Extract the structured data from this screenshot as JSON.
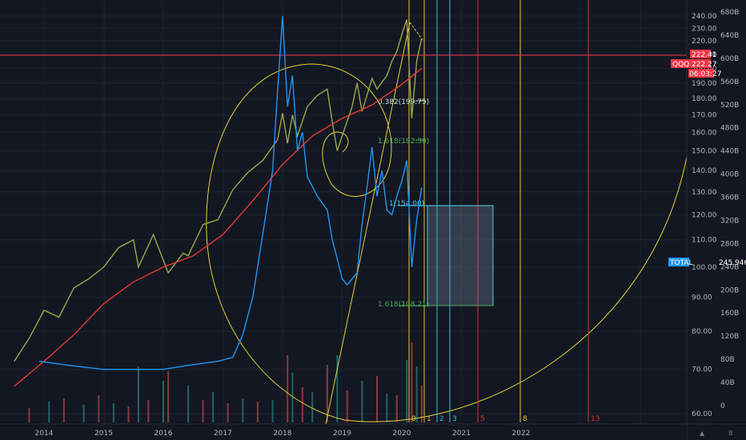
{
  "chart_data": {
    "type": "line",
    "symbol": "QQQ",
    "x_labels": [
      "2014",
      "2015",
      "2016",
      "2017",
      "2018",
      "2019",
      "2020",
      "2021",
      "2022"
    ],
    "price_axis": {
      "ticks": [
        "240.00",
        "230.00",
        "220.00",
        "210.00",
        "200.00",
        "190.00",
        "180.00",
        "170.00",
        "160.00",
        "150.00",
        "140.00",
        "130.00",
        "120.00",
        "110.00",
        "100.00",
        "90.00",
        "80.00",
        "70.00",
        "60.00"
      ],
      "scale": "log",
      "ylim": [
        60,
        240
      ]
    },
    "volume_axis": {
      "ticks": [
        "680B",
        "640B",
        "600B",
        "560B",
        "520B",
        "480B",
        "440B",
        "400B",
        "360B",
        "320B",
        "280B",
        "240B",
        "200B",
        "160B",
        "120B",
        "80B",
        "40B",
        "0"
      ]
    },
    "price_tags": [
      {
        "label": "",
        "value": "222.41",
        "color": "#f23645"
      },
      {
        "label": "QQQ",
        "value": "222.27",
        "color": "#f23645"
      },
      {
        "label": "",
        "value": "06:03:27",
        "color": "#f23645"
      },
      {
        "label": "TOTAL",
        "value": "245.946",
        "color": "#2196f3"
      }
    ],
    "fib_levels": [
      {
        "label": "0.382(199.75)",
        "color": "#c8e6c9"
      },
      {
        "label": "1.618(182.30)",
        "color": "#4caf50"
      },
      {
        "label": "1(154.00)",
        "color": "#4dd0e1"
      },
      {
        "label": "1.618(108.21)",
        "color": "#4caf50"
      }
    ],
    "time_zones": [
      {
        "label": "0",
        "color": "#e5c33a"
      },
      {
        "label": "1",
        "color": "#e5c33a"
      },
      {
        "label": "2",
        "color": "#26c6da"
      },
      {
        "label": "3",
        "color": "#26c6da"
      },
      {
        "label": "5",
        "color": "#d32f2f"
      },
      {
        "label": "8",
        "color": "#e5c33a"
      },
      {
        "label": "13",
        "color": "#d32f2f"
      }
    ],
    "series": [
      {
        "color": "#9aa84a",
        "points": [
          [
            "2013-07",
            72
          ],
          [
            "2013-10",
            78
          ],
          [
            "2014-01",
            86
          ],
          [
            "2014-04",
            84
          ],
          [
            "2014-07",
            93
          ],
          [
            "2014-10",
            96
          ],
          [
            "2015-01",
            100
          ],
          [
            "2015-04",
            107
          ],
          [
            "2015-07",
            110
          ],
          [
            "2015-08",
            100
          ],
          [
            "2015-11",
            112
          ],
          [
            "2016-02",
            98
          ],
          [
            "2016-05",
            105
          ],
          [
            "2016-06",
            104
          ],
          [
            "2016-09",
            116
          ],
          [
            "2016-12",
            118
          ],
          [
            "2017-03",
            131
          ],
          [
            "2017-06",
            139
          ],
          [
            "2017-09",
            145
          ],
          [
            "2017-12",
            156
          ],
          [
            "2018-01",
            171
          ],
          [
            "2018-02",
            154
          ],
          [
            "2018-03",
            170
          ],
          [
            "2018-04",
            158
          ],
          [
            "2018-06",
            175
          ],
          [
            "2018-08",
            182
          ],
          [
            "2018-10",
            186
          ],
          [
            "2018-11",
            166
          ],
          [
            "2018-12",
            150
          ],
          [
            "2019-01",
            158
          ],
          [
            "2019-03",
            175
          ],
          [
            "2019-04",
            190
          ],
          [
            "2019-05",
            172
          ],
          [
            "2019-07",
            193
          ],
          [
            "2019-08",
            186
          ],
          [
            "2019-10",
            195
          ],
          [
            "2019-11",
            205
          ],
          [
            "2019-12",
            212
          ],
          [
            "2020-01",
            225
          ],
          [
            "2020-02",
            237
          ],
          [
            "2020-03",
            168
          ],
          [
            "2020-04",
            205
          ],
          [
            "2020-05",
            222
          ]
        ]
      },
      {
        "color": "#e53935",
        "points": [
          [
            "2013-07",
            66
          ],
          [
            "2014-01",
            72
          ],
          [
            "2014-07",
            79
          ],
          [
            "2015-01",
            88
          ],
          [
            "2015-07",
            95
          ],
          [
            "2016-01",
            100
          ],
          [
            "2016-07",
            104
          ],
          [
            "2017-01",
            112
          ],
          [
            "2017-07",
            126
          ],
          [
            "2018-01",
            143
          ],
          [
            "2018-07",
            158
          ],
          [
            "2019-01",
            168
          ],
          [
            "2019-07",
            176
          ],
          [
            "2020-01",
            189
          ],
          [
            "2020-05",
            200
          ]
        ]
      },
      {
        "color": "#2196f3",
        "points": [
          [
            "2013-12",
            72
          ],
          [
            "2014-06",
            71
          ],
          [
            "2015-01",
            70
          ],
          [
            "2015-06",
            70
          ],
          [
            "2016-01",
            70
          ],
          [
            "2016-06",
            71
          ],
          [
            "2016-12",
            72
          ],
          [
            "2017-03",
            73
          ],
          [
            "2017-05",
            79
          ],
          [
            "2017-07",
            90
          ],
          [
            "2017-09",
            112
          ],
          [
            "2017-11",
            140
          ],
          [
            "2017-12",
            185
          ],
          [
            "2018-01",
            240
          ],
          [
            "2018-02",
            175
          ],
          [
            "2018-03",
            195
          ],
          [
            "2018-04",
            150
          ],
          [
            "2018-05",
            160
          ],
          [
            "2018-06",
            137
          ],
          [
            "2018-08",
            128
          ],
          [
            "2018-10",
            122
          ],
          [
            "2018-11",
            110
          ],
          [
            "2018-12",
            103
          ],
          [
            "2019-01",
            96
          ],
          [
            "2019-02",
            94
          ],
          [
            "2019-04",
            98
          ],
          [
            "2019-05",
            116
          ],
          [
            "2019-06",
            132
          ],
          [
            "2019-07",
            152
          ],
          [
            "2019-08",
            128
          ],
          [
            "2019-09",
            140
          ],
          [
            "2019-10",
            122
          ],
          [
            "2019-11",
            120
          ],
          [
            "2019-12",
            128
          ],
          [
            "2020-01",
            135
          ],
          [
            "2020-02",
            145
          ],
          [
            "2020-03",
            100
          ],
          [
            "2020-04",
            118
          ],
          [
            "2020-05",
            132
          ]
        ]
      }
    ],
    "volume_bars": [
      [
        "2013-10",
        18
      ],
      [
        "2014-02",
        26
      ],
      [
        "2014-05",
        30
      ],
      [
        "2014-09",
        22
      ],
      [
        "2014-12",
        34
      ],
      [
        "2015-03",
        24
      ],
      [
        "2015-06",
        20
      ],
      [
        "2015-08",
        70
      ],
      [
        "2015-10",
        28
      ],
      [
        "2016-01",
        52
      ],
      [
        "2016-02",
        64
      ],
      [
        "2016-06",
        46
      ],
      [
        "2016-09",
        28
      ],
      [
        "2016-11",
        38
      ],
      [
        "2017-02",
        24
      ],
      [
        "2017-05",
        30
      ],
      [
        "2017-08",
        26
      ],
      [
        "2017-11",
        28
      ],
      [
        "2018-02",
        84
      ],
      [
        "2018-03",
        62
      ],
      [
        "2018-05",
        44
      ],
      [
        "2018-07",
        38
      ],
      [
        "2018-10",
        72
      ],
      [
        "2018-12",
        84
      ],
      [
        "2019-02",
        40
      ],
      [
        "2019-05",
        52
      ],
      [
        "2019-08",
        58
      ],
      [
        "2019-10",
        36
      ],
      [
        "2019-12",
        34
      ],
      [
        "2020-02",
        78
      ],
      [
        "2020-03",
        100
      ],
      [
        "2020-04",
        70
      ],
      [
        "2020-05",
        46
      ]
    ]
  }
}
